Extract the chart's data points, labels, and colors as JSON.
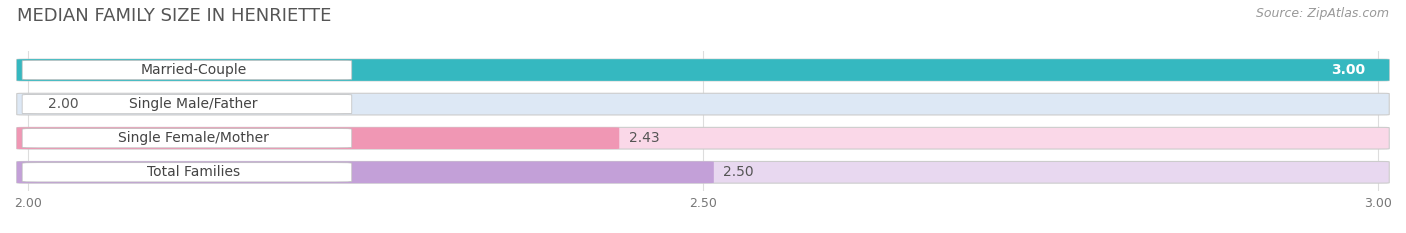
{
  "title": "MEDIAN FAMILY SIZE IN HENRIETTE",
  "source": "Source: ZipAtlas.com",
  "categories": [
    "Married-Couple",
    "Single Male/Father",
    "Single Female/Mother",
    "Total Families"
  ],
  "values": [
    3.0,
    2.0,
    2.43,
    2.5
  ],
  "bar_colors": [
    "#35b8c0",
    "#aac4e8",
    "#f097b4",
    "#c3a0d8"
  ],
  "bar_bg_colors": [
    "#d8f0f2",
    "#dde8f5",
    "#fad8e8",
    "#e8d8f0"
  ],
  "xlim_min": 2.0,
  "xlim_max": 3.0,
  "xticks": [
    2.0,
    2.5,
    3.0
  ],
  "xtick_labels": [
    "2.00",
    "2.50",
    "3.00"
  ],
  "value_labels": [
    "3.00",
    "2.00",
    "2.43",
    "2.50"
  ],
  "bg_color": "#ffffff",
  "title_fontsize": 13,
  "source_fontsize": 9,
  "label_fontsize": 10,
  "value_fontsize": 10,
  "bar_height": 0.62
}
